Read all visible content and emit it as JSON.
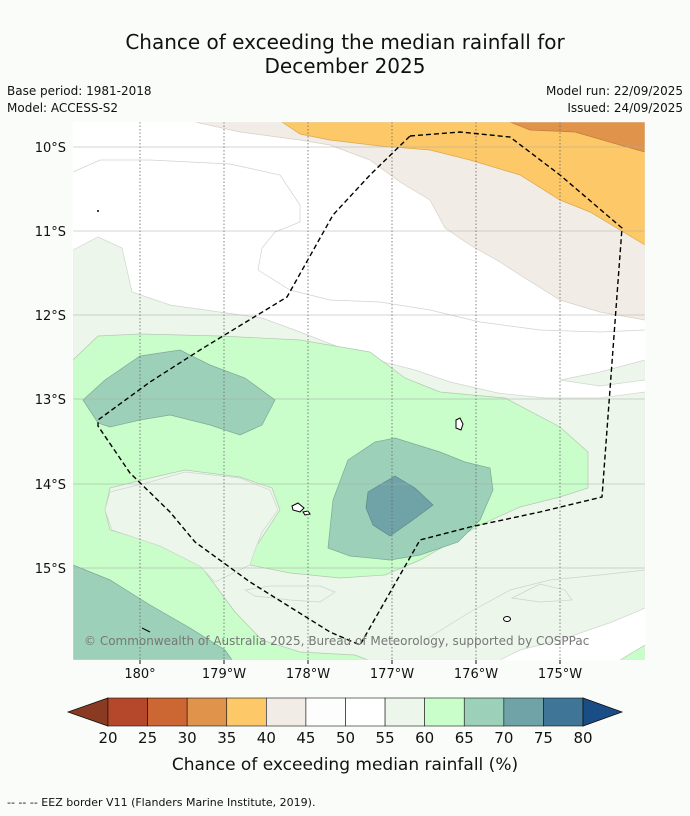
{
  "title_line1": "Chance of exceeding the median rainfall for",
  "title_line2": "December 2025",
  "base_period": "Base period: 1981-2018",
  "model": "Model: ACCESS-S2",
  "model_run": "Model run: 22/09/2025",
  "issued": "Issued: 24/09/2025",
  "copyright": "© Commonwealth of Australia 2025, Bureau of Meteorology, supported by COSPPac",
  "colorbar": {
    "label": "Chance of exceeding median rainfall (%)",
    "ticks": [
      "20",
      "25",
      "30",
      "35",
      "40",
      "45",
      "50",
      "55",
      "60",
      "65",
      "70",
      "75",
      "80"
    ],
    "colors": [
      "#8b3a22",
      "#b5482a",
      "#cc6633",
      "#e0944b",
      "#fdc867",
      "#f2ece6",
      "#fdfdfd",
      "#ffffff",
      "#ecf6ea",
      "#c9fdc9",
      "#9cd0b8",
      "#6fa3a8",
      "#3f7596",
      "#1a4d86"
    ]
  },
  "map": {
    "lat_labels": [
      "10°S",
      "11°S",
      "12°S",
      "13°S",
      "14°S",
      "15°S"
    ],
    "lon_labels": [
      "180°",
      "179°W",
      "178°W",
      "177°W",
      "176°W",
      "175°W"
    ]
  },
  "footer": "--  --  -- EEZ border V11 (Flanders Marine Institute, 2019)."
}
